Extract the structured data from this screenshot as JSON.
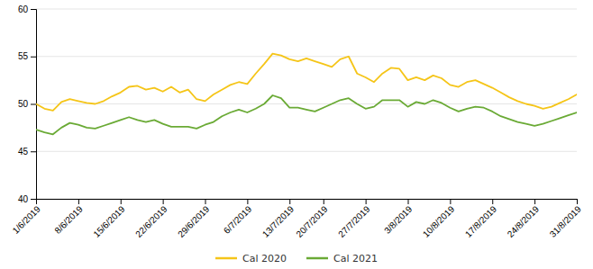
{
  "chart_data": {
    "type": "line",
    "categories": [
      "1/6/2019",
      null,
      null,
      null,
      null,
      "8/6/2019",
      null,
      null,
      null,
      null,
      "15/6/2019",
      null,
      null,
      null,
      null,
      "22/6/2019",
      null,
      null,
      null,
      null,
      "29/6/2019",
      null,
      null,
      null,
      null,
      "6/7/2019",
      null,
      null,
      null,
      null,
      "13/7/2019",
      null,
      null,
      null,
      "20/7/2019",
      null,
      null,
      null,
      null,
      "27/7/2019",
      null,
      null,
      null,
      null,
      "3/8/2019",
      null,
      null,
      null,
      null,
      "10/8/2019",
      null,
      null,
      null,
      null,
      "17/8/2019",
      null,
      null,
      null,
      null,
      "24/8/2019",
      null,
      null,
      null,
      null,
      "31/8/2019"
    ],
    "series": [
      {
        "name": "Cal 2020",
        "color": "#f5c518",
        "values": [
          50.0,
          49.5,
          49.3,
          50.2,
          50.5,
          50.3,
          50.1,
          50.0,
          50.3,
          50.8,
          51.2,
          51.8,
          51.9,
          51.5,
          51.7,
          51.3,
          51.8,
          51.2,
          51.5,
          50.5,
          50.3,
          51.0,
          51.5,
          52.0,
          52.3,
          52.1,
          53.2,
          54.2,
          55.3,
          55.1,
          54.7,
          54.5,
          54.8,
          54.5,
          54.2,
          53.9,
          54.7,
          55.0,
          53.2,
          52.8,
          52.3,
          53.2,
          53.8,
          53.7,
          52.5,
          52.8,
          52.5,
          53.0,
          52.7,
          52.0,
          51.8,
          52.3,
          52.5,
          52.1,
          51.7,
          51.2,
          50.7,
          50.3,
          50.0,
          49.8,
          49.5,
          49.7,
          50.1,
          50.5,
          51.0
        ]
      },
      {
        "name": "Cal 2021",
        "color": "#6aaa35",
        "values": [
          47.3,
          47.0,
          46.8,
          47.5,
          48.0,
          47.8,
          47.5,
          47.4,
          47.7,
          48.0,
          48.3,
          48.6,
          48.3,
          48.1,
          48.3,
          47.9,
          47.6,
          47.6,
          47.6,
          47.4,
          47.8,
          48.1,
          48.7,
          49.1,
          49.4,
          49.1,
          49.5,
          50.0,
          50.9,
          50.6,
          49.6,
          49.6,
          49.4,
          49.2,
          49.6,
          50.0,
          50.4,
          50.6,
          50.0,
          49.5,
          49.7,
          50.4,
          50.4,
          50.4,
          49.7,
          50.2,
          50.0,
          50.4,
          50.1,
          49.6,
          49.2,
          49.5,
          49.7,
          49.6,
          49.2,
          48.7,
          48.4,
          48.1,
          47.9,
          47.7,
          47.9,
          48.2,
          48.5,
          48.8,
          49.1
        ]
      }
    ],
    "ylim": [
      40,
      60
    ],
    "yticks": [
      40,
      45,
      50,
      55,
      60
    ],
    "grid": true,
    "legend": "bottom"
  }
}
